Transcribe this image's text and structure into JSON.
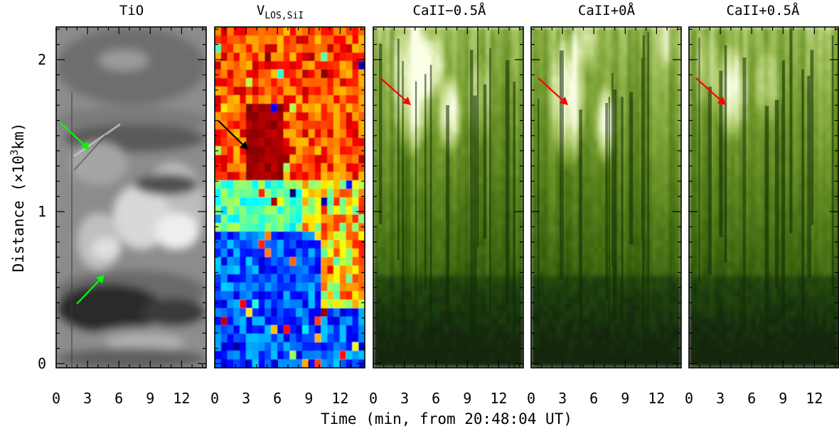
{
  "figure": {
    "x_axis_label": "Time (min, from 20:48:04 UT)",
    "y_axis_label_prefix": "Distance (×10",
    "y_axis_label_exp": "3",
    "y_axis_label_suffix": "km)",
    "x_tick_labels": [
      "0",
      "3",
      "6",
      "9",
      "12"
    ],
    "y_tick_labels": [
      "0",
      "1",
      "2"
    ],
    "panels": [
      {
        "id": "tio",
        "title": "TiO",
        "subscript": "",
        "colormap": "grayscale",
        "arrows": [
          {
            "color": "#00ff00"
          },
          {
            "color": "#00ff00"
          }
        ]
      },
      {
        "id": "vlos",
        "title": "V",
        "subscript": "LOS,SiI",
        "colormap": "jet",
        "arrows": [
          {
            "color": "#000000"
          }
        ]
      },
      {
        "id": "ca-minus",
        "title": "CaII−0.5Å",
        "subscript": "",
        "colormap": "green",
        "arrows": [
          {
            "color": "#ff0000"
          }
        ]
      },
      {
        "id": "ca-zero",
        "title": "CaII+0Å",
        "subscript": "",
        "colormap": "green",
        "arrows": [
          {
            "color": "#ff0000"
          }
        ]
      },
      {
        "id": "ca-plus",
        "title": "CaII+0.5Å",
        "subscript": "",
        "colormap": "green",
        "arrows": [
          {
            "color": "#ff0000"
          }
        ]
      }
    ]
  }
}
